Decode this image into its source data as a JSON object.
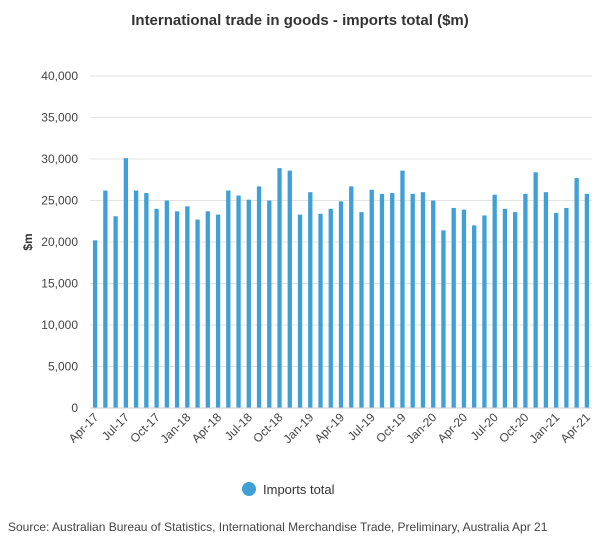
{
  "chart_data": {
    "type": "bar",
    "title": "International trade in goods - imports total ($m)",
    "ylabel": "$m",
    "ylim": [
      0,
      40000
    ],
    "yticks": [
      0,
      5000,
      10000,
      15000,
      20000,
      25000,
      30000,
      35000,
      40000
    ],
    "ytick_labels": [
      "0",
      "5,000",
      "10,000",
      "15,000",
      "20,000",
      "25,000",
      "30,000",
      "35,000",
      "40,000"
    ],
    "grid": true,
    "categories": [
      "Apr-17",
      "May-17",
      "Jun-17",
      "Jul-17",
      "Aug-17",
      "Sep-17",
      "Oct-17",
      "Nov-17",
      "Dec-17",
      "Jan-18",
      "Feb-18",
      "Mar-18",
      "Apr-18",
      "May-18",
      "Jun-18",
      "Jul-18",
      "Aug-18",
      "Sep-18",
      "Oct-18",
      "Nov-18",
      "Dec-18",
      "Jan-19",
      "Feb-19",
      "Mar-19",
      "Apr-19",
      "May-19",
      "Jun-19",
      "Jul-19",
      "Aug-19",
      "Sep-19",
      "Oct-19",
      "Nov-19",
      "Dec-19",
      "Jan-20",
      "Feb-20",
      "Mar-20",
      "Apr-20",
      "May-20",
      "Jun-20",
      "Jul-20",
      "Aug-20",
      "Sep-20",
      "Oct-20",
      "Nov-20",
      "Dec-20",
      "Jan-21",
      "Feb-21",
      "Mar-21",
      "Apr-21"
    ],
    "xtick_labels": [
      "Apr-17",
      "Jul-17",
      "Oct-17",
      "Jan-18",
      "Apr-18",
      "Jul-18",
      "Oct-18",
      "Jan-19",
      "Apr-19",
      "Jul-19",
      "Oct-19",
      "Jan-20",
      "Apr-20",
      "Jul-20",
      "Oct-20",
      "Jan-21",
      "Apr-21"
    ],
    "series": [
      {
        "name": "Imports total",
        "color": "#3fa0d7",
        "values": [
          20200,
          26200,
          23100,
          30100,
          26200,
          25900,
          24000,
          25000,
          23700,
          24300,
          22700,
          23700,
          23300,
          26200,
          25600,
          25100,
          26700,
          25000,
          28900,
          28600,
          23300,
          26000,
          23400,
          24000,
          24900,
          26700,
          23600,
          26300,
          25800,
          25900,
          28600,
          25800,
          26000,
          25000,
          21400,
          24100,
          23900,
          22000,
          23200,
          25700,
          24000,
          23600,
          25800,
          28400,
          26000,
          23500,
          24100,
          27700,
          25800
        ]
      }
    ],
    "legend": {
      "placement": "bottom",
      "label": "Imports total"
    },
    "source": "Source: Australian Bureau of Statistics, International Merchandise Trade, Preliminary, Australia Apr 21"
  }
}
